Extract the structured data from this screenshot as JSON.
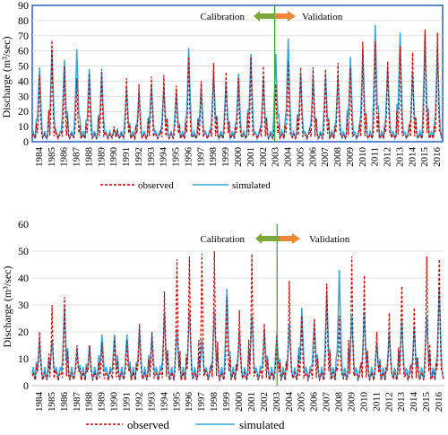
{
  "years": [
    "1984",
    "1985",
    "1986",
    "1987",
    "1988",
    "1989",
    "1990",
    "1991",
    "1992",
    "1993",
    "1994",
    "1995",
    "1996",
    "1997",
    "1998",
    "1999",
    "2000",
    "2001",
    "2002",
    "2003",
    "2004",
    "2005",
    "2006",
    "2007",
    "2008",
    "2009",
    "2010",
    "2011",
    "2012",
    "2013",
    "2014",
    "2015",
    "2016"
  ],
  "legend": {
    "observed": "observed",
    "simulated": "simulated"
  },
  "colors": {
    "observed": "#c00000",
    "simulated": "#3aa6d8",
    "divider": "#22aa22",
    "frame_top": "#2e5fb8",
    "arrow_left": "#7aa83a",
    "arrow_right": "#f0883a"
  },
  "chart_data": [
    {
      "type": "line",
      "ylabel": "Discharge (m³/sec)",
      "ylim": [
        0,
        90
      ],
      "yticks": [
        0,
        10,
        20,
        30,
        40,
        50,
        60,
        70,
        80,
        90
      ],
      "calibration_label": "Calibration",
      "validation_label": "Validation",
      "split_year": 2003.0,
      "series": [
        {
          "name": "observed",
          "peaks": [
            44,
            67,
            50,
            42,
            45,
            48,
            10,
            42,
            38,
            43,
            44,
            37,
            56,
            40,
            52,
            46,
            42,
            56,
            50,
            38,
            53,
            49,
            49,
            48,
            52,
            49,
            66,
            66,
            53,
            63,
            59,
            74,
            72
          ]
        },
        {
          "name": "simulated",
          "peaks": [
            49,
            61,
            54,
            61,
            48,
            46,
            8,
            36,
            33,
            38,
            37,
            34,
            62,
            36,
            46,
            40,
            45,
            58,
            42,
            58,
            68,
            45,
            43,
            45,
            44,
            56,
            61,
            77,
            50,
            72,
            46,
            71,
            62
          ]
        }
      ]
    },
    {
      "type": "line",
      "ylabel": "Discharge (m³/sec)",
      "ylim": [
        0,
        60
      ],
      "yticks": [
        0,
        10,
        20,
        30,
        40,
        50,
        60
      ],
      "calibration_label": "Calibration",
      "validation_label": "Validation",
      "split_year": 2003.1,
      "series": [
        {
          "name": "observed",
          "peaks": [
            20,
            30,
            33,
            15,
            15,
            16,
            18,
            17,
            23,
            20,
            35,
            47,
            48,
            49,
            50,
            33,
            28,
            49,
            23,
            20,
            39,
            26,
            25,
            38,
            26,
            48,
            41,
            20,
            27,
            37,
            29,
            48,
            47
          ]
        },
        {
          "name": "simulated",
          "peaks": [
            17,
            17,
            29,
            14,
            15,
            19,
            19,
            19,
            21,
            19,
            27,
            21,
            28,
            17,
            28,
            36,
            20,
            26,
            21,
            19,
            23,
            29,
            24,
            35,
            43,
            26,
            27,
            16,
            20,
            24,
            22,
            26,
            36
          ]
        }
      ]
    }
  ]
}
